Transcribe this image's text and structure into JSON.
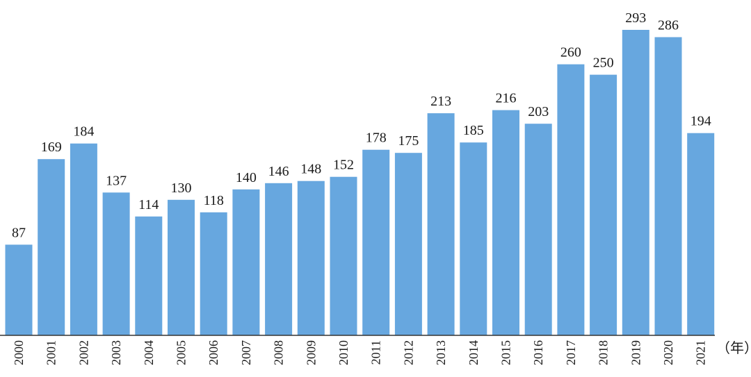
{
  "chart_data": {
    "type": "bar",
    "categories": [
      "2000",
      "2001",
      "2002",
      "2003",
      "2004",
      "2005",
      "2006",
      "2007",
      "2008",
      "2009",
      "2010",
      "2011",
      "2012",
      "2013",
      "2014",
      "2015",
      "2016",
      "2017",
      "2018",
      "2019",
      "2020",
      "2021"
    ],
    "values": [
      87,
      169,
      184,
      137,
      114,
      130,
      118,
      140,
      146,
      148,
      152,
      178,
      175,
      213,
      185,
      216,
      203,
      260,
      250,
      293,
      286,
      194
    ],
    "x_unit_label": "（年）",
    "ylim": [
      0,
      293
    ],
    "grid": false,
    "bar_color": "#67A7DF"
  }
}
